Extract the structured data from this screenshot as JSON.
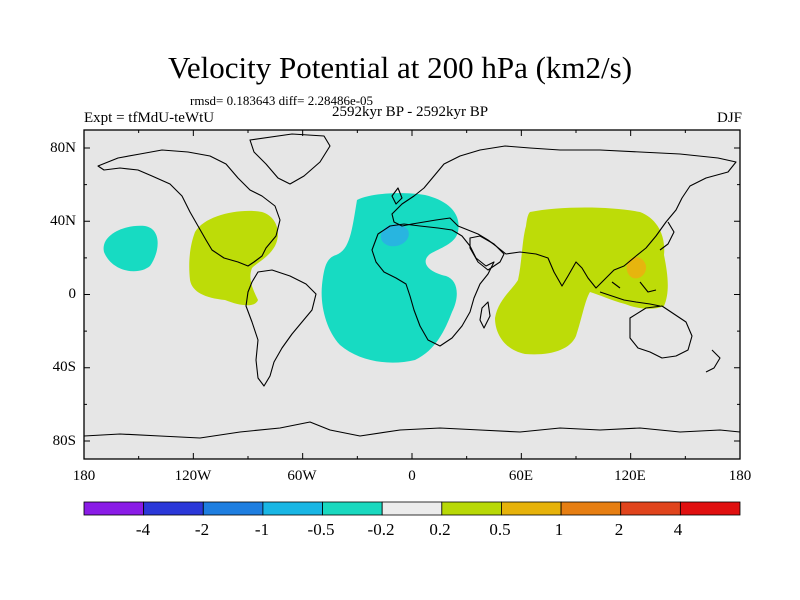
{
  "title": "Velocity Potential at 200 hPa (km2/s)",
  "stats": "rmsd= 0.183643 diff= 2.28486e-05",
  "experiment": "Expt = tfMdU-teWtU",
  "period": "2592kyr BP - 2592kyr BP",
  "season": "DJF",
  "y_axis_labels": [
    "80N",
    "40N",
    "0",
    "40S",
    "80S"
  ],
  "x_axis_labels": [
    "180",
    "120W",
    "60W",
    "0",
    "60E",
    "120E",
    "180"
  ],
  "colorbar": {
    "labels": [
      "-4",
      "-2",
      "-1",
      "-0.5",
      "-0.2",
      "0.2",
      "0.5",
      "1",
      "2",
      "4"
    ],
    "colors": [
      "#8a1ce6",
      "#2b38d8",
      "#1e7ee0",
      "#19b6e4",
      "#1ad8bf",
      "#ececec",
      "#b8d806",
      "#e6b20a",
      "#e67e12",
      "#e0441c",
      "#e01010"
    ]
  },
  "fill_colors": {
    "background": "#e6e6e6",
    "negative_light": "#17dbc2",
    "negative_mid": "#28b5e0",
    "positive_light": "#bddc08",
    "positive_mid": "#e6b50e"
  }
}
